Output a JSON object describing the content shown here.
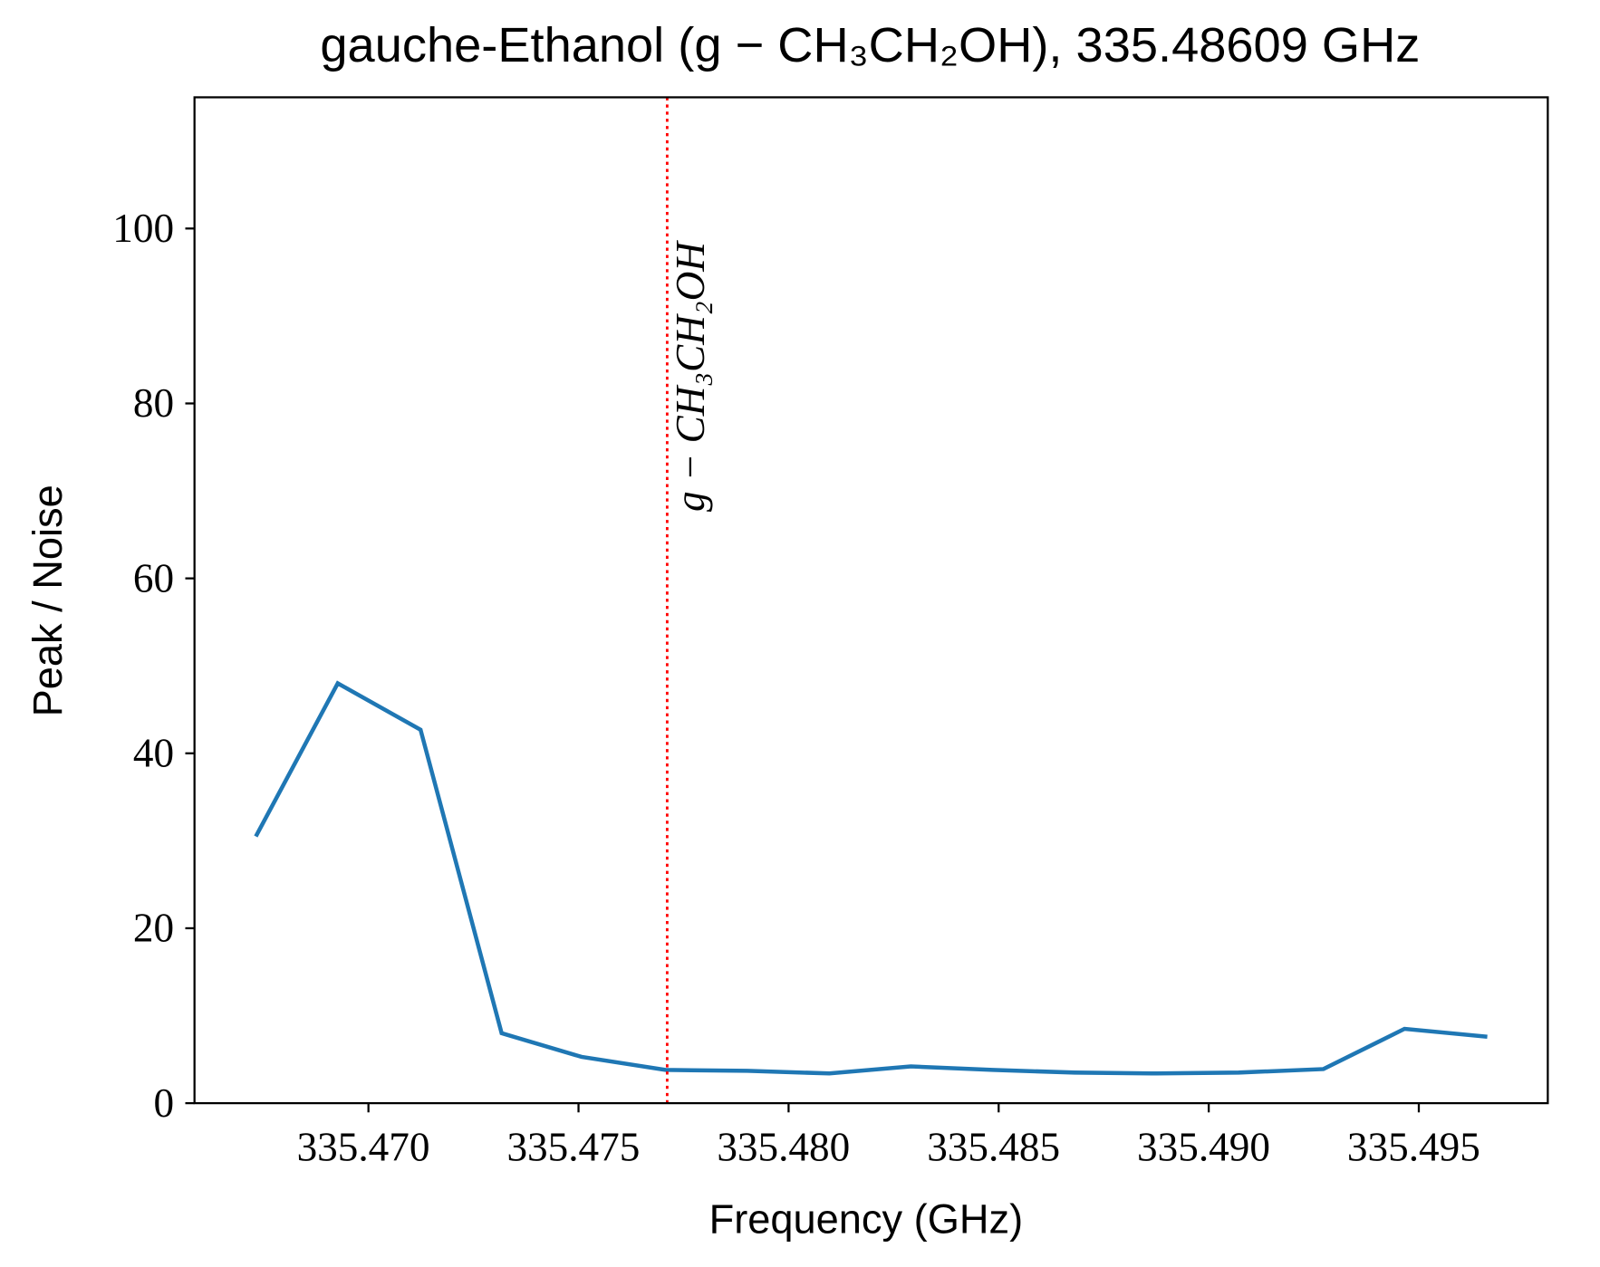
{
  "chart_data": {
    "type": "line",
    "title": "gauche-Ethanol (g − CH₃CH₂OH), 335.48609 GHz",
    "x_label": "Frequency (GHz)",
    "y_label": "Peak / Noise",
    "x": [
      335.46732,
      335.46927,
      335.47124,
      335.47317,
      335.47507,
      335.47707,
      335.47902,
      335.48097,
      335.48291,
      335.48486,
      335.48681,
      335.48876,
      335.49071,
      335.49273,
      335.49466,
      335.49663
    ],
    "series": [
      {
        "name": "g − CH₃CH₂OH",
        "color": "#1f77b4",
        "values": [
          30.5,
          48,
          42.7,
          8,
          5.3,
          3.8,
          3.7,
          3.4,
          4.2,
          3.8,
          3.5,
          3.4,
          3.5,
          3.9,
          8.5,
          7.6
        ]
      }
    ],
    "xlim": [
      335.46586,
      335.49807
    ],
    "ylim": [
      0,
      115
    ],
    "xticks": [
      {
        "value": 335.47,
        "label": "335.470"
      },
      335.475,
      {
        "value": 335.48,
        "label": "335.480"
      },
      335.485,
      {
        "value": 335.49,
        "label": "335.490"
      },
      335.495
    ],
    "yticks": [
      0,
      20,
      40,
      60,
      80,
      100
    ],
    "vline": {
      "x": 335.47711,
      "color": "#ff0000",
      "label": "g − CH₃CH₂OH"
    }
  }
}
